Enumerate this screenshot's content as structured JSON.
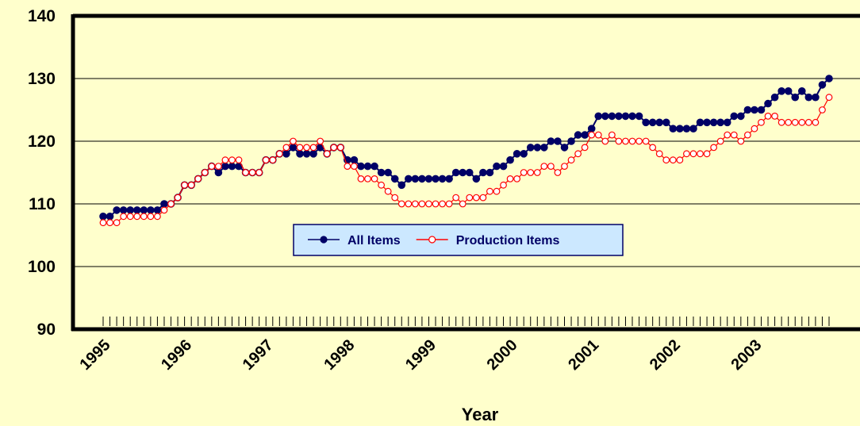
{
  "chart_data": {
    "type": "line",
    "x_label": "Year",
    "categories": [
      "1995",
      null,
      null,
      null,
      null,
      null,
      null,
      null,
      null,
      null,
      null,
      null,
      "1996",
      null,
      null,
      null,
      null,
      null,
      null,
      null,
      null,
      null,
      null,
      null,
      "1997",
      null,
      null,
      null,
      null,
      null,
      null,
      null,
      null,
      null,
      null,
      null,
      "1998",
      null,
      null,
      null,
      null,
      null,
      null,
      null,
      null,
      null,
      null,
      null,
      "1999",
      null,
      null,
      null,
      null,
      null,
      null,
      null,
      null,
      null,
      null,
      null,
      "2000",
      null,
      null,
      null,
      null,
      null,
      null,
      null,
      null,
      null,
      null,
      null,
      "2001",
      null,
      null,
      null,
      null,
      null,
      null,
      null,
      null,
      null,
      null,
      null,
      "2002",
      null,
      null,
      null,
      null,
      null,
      null,
      null,
      null,
      null,
      null,
      null,
      "2003",
      null,
      null,
      null,
      null,
      null,
      null,
      null,
      null,
      null,
      null,
      null
    ],
    "series": [
      {
        "name": "All Items",
        "color": "#000066",
        "marker": "filled",
        "values": [
          108,
          108,
          109,
          109,
          109,
          109,
          109,
          109,
          109,
          110,
          110,
          111,
          113,
          113,
          114,
          115,
          116,
          115,
          116,
          116,
          116,
          115,
          115,
          115,
          117,
          117,
          118,
          118,
          119,
          118,
          118,
          118,
          119,
          118,
          119,
          119,
          117,
          117,
          116,
          116,
          116,
          115,
          115,
          114,
          113,
          114,
          114,
          114,
          114,
          114,
          114,
          114,
          115,
          115,
          115,
          114,
          115,
          115,
          116,
          116,
          117,
          118,
          118,
          119,
          119,
          119,
          120,
          120,
          119,
          120,
          121,
          121,
          122,
          124,
          124,
          124,
          124,
          124,
          124,
          124,
          123,
          123,
          123,
          123,
          122,
          122,
          122,
          122,
          123,
          123,
          123,
          123,
          123,
          124,
          124,
          125,
          125,
          125,
          126,
          127,
          128,
          128,
          127,
          128,
          127,
          127,
          129,
          130
        ]
      },
      {
        "name": "Production Items",
        "color": "#ff0000",
        "marker": "hollow",
        "values": [
          107,
          107,
          107,
          108,
          108,
          108,
          108,
          108,
          108,
          109,
          110,
          111,
          113,
          113,
          114,
          115,
          116,
          116,
          117,
          117,
          117,
          115,
          115,
          115,
          117,
          117,
          118,
          119,
          120,
          119,
          119,
          119,
          120,
          118,
          119,
          119,
          116,
          116,
          114,
          114,
          114,
          113,
          112,
          111,
          110,
          110,
          110,
          110,
          110,
          110,
          110,
          110,
          111,
          110,
          111,
          111,
          111,
          112,
          112,
          113,
          114,
          114,
          115,
          115,
          115,
          116,
          116,
          115,
          116,
          117,
          118,
          119,
          121,
          121,
          120,
          121,
          120,
          120,
          120,
          120,
          120,
          119,
          118,
          117,
          117,
          117,
          118,
          118,
          118,
          118,
          119,
          120,
          121,
          121,
          120,
          121,
          122,
          123,
          124,
          124,
          123,
          123,
          123,
          123,
          123,
          123,
          125,
          127
        ]
      }
    ],
    "ylim": [
      90,
      140
    ],
    "yticks": [
      90,
      100,
      110,
      120,
      130,
      140
    ],
    "grid": true,
    "legend": "center"
  }
}
